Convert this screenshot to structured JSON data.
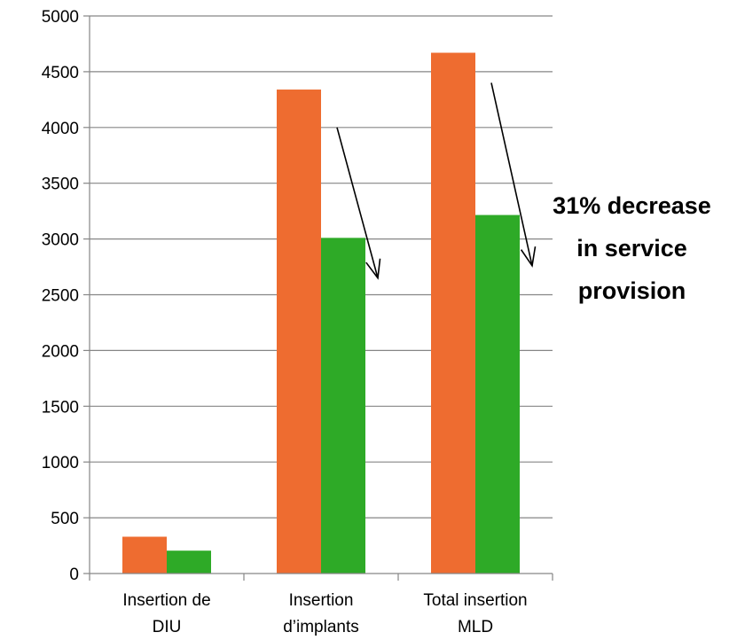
{
  "chart_data": {
    "type": "bar",
    "categories": [
      [
        "Insertion de",
        "DIU"
      ],
      [
        "Insertion",
        "d’implants"
      ],
      [
        "Total insertion",
        "MLD"
      ]
    ],
    "series": [
      {
        "values": [
          330,
          4340,
          4670
        ],
        "color": "#ee6c30"
      },
      {
        "values": [
          205,
          3010,
          3215
        ],
        "color": "#2eaa27"
      }
    ],
    "ylim": [
      0,
      5000
    ],
    "yticks": [
      0,
      500,
      1000,
      1500,
      2000,
      2500,
      3000,
      3500,
      4000,
      4500,
      5000
    ],
    "grid": true,
    "legend": "none",
    "annotations": {
      "text_lines": [
        "31% decrease",
        "in service",
        "provision"
      ],
      "arrows": [
        {
          "category": 1,
          "from_value": 4000,
          "to_value": 2650
        },
        {
          "category": 2,
          "from_value": 4400,
          "to_value": 2760
        }
      ]
    }
  }
}
